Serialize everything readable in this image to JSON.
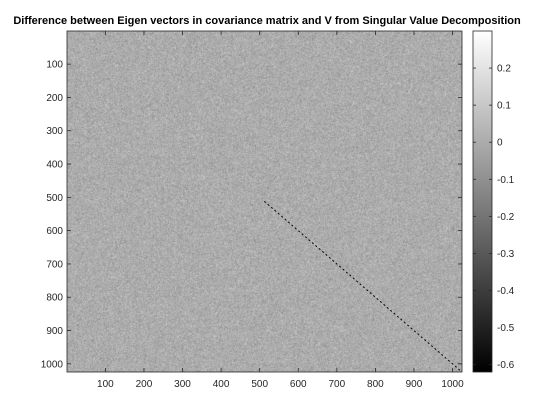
{
  "chart_data": {
    "type": "heatmap",
    "title": "Difference between Eigen vectors in covariance matrix and V from Singular Value Decomposition",
    "xlabel": "",
    "ylabel": "",
    "colormap": "gray",
    "xlim": [
      1,
      1024
    ],
    "ylim": [
      1,
      1024
    ],
    "y_direction": "reversed",
    "x_ticks": [
      100,
      200,
      300,
      400,
      500,
      600,
      700,
      800,
      900,
      1000
    ],
    "y_ticks": [
      100,
      200,
      300,
      400,
      500,
      600,
      700,
      800,
      900,
      1000
    ],
    "background_noise_std": 0.04,
    "diagonal_feature": {
      "from": [
        512,
        512
      ],
      "to": [
        1024,
        1024
      ],
      "value": -0.6
    },
    "colorbar": {
      "range": [
        -0.62,
        0.3
      ],
      "ticks": [
        0.2,
        0.1,
        0,
        -0.1,
        -0.2,
        -0.3,
        -0.4,
        -0.5,
        -0.6
      ],
      "tick_labels": [
        "0.2",
        "0.1",
        "0",
        "-0.1",
        "-0.2",
        "-0.3",
        "-0.4",
        "-0.5",
        "-0.6"
      ]
    },
    "grid": false,
    "legend": "none"
  }
}
